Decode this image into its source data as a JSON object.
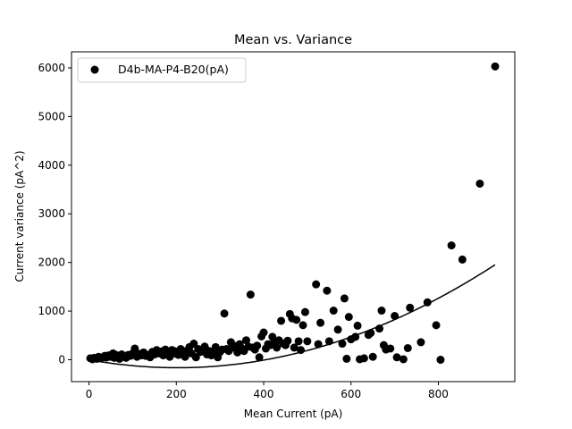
{
  "chart_data": {
    "type": "scatter",
    "title": "Mean vs. Variance",
    "xlabel": "Mean Current (pA)",
    "ylabel": "Current variance (pA^2)",
    "xlim": [
      -40,
      975
    ],
    "ylim": [
      -450,
      6330
    ],
    "xticks": [
      0,
      200,
      400,
      600,
      800
    ],
    "yticks": [
      0,
      1000,
      2000,
      3000,
      4000,
      5000,
      6000
    ],
    "grid": false,
    "legend_position": "top-left",
    "colors": {
      "points": "#000000",
      "fit": "#000000",
      "frame": "#000000"
    },
    "series": [
      {
        "name": "D4b-MA-P4-B20(pA)",
        "marker": "circle",
        "points": [
          [
            3,
            30
          ],
          [
            8,
            10
          ],
          [
            12,
            40
          ],
          [
            18,
            20
          ],
          [
            22,
            60
          ],
          [
            27,
            35
          ],
          [
            32,
            50
          ],
          [
            36,
            80
          ],
          [
            40,
            45
          ],
          [
            45,
            90
          ],
          [
            50,
            60
          ],
          [
            55,
            130
          ],
          [
            58,
            40
          ],
          [
            62,
            100
          ],
          [
            66,
            70
          ],
          [
            70,
            20
          ],
          [
            75,
            110
          ],
          [
            80,
            60
          ],
          [
            85,
            40
          ],
          [
            90,
            100
          ],
          [
            95,
            80
          ],
          [
            100,
            130
          ],
          [
            105,
            230
          ],
          [
            110,
            60
          ],
          [
            115,
            120
          ],
          [
            120,
            90
          ],
          [
            125,
            150
          ],
          [
            130,
            80
          ],
          [
            135,
            100
          ],
          [
            140,
            50
          ],
          [
            145,
            160
          ],
          [
            150,
            110
          ],
          [
            155,
            200
          ],
          [
            160,
            130
          ],
          [
            165,
            170
          ],
          [
            170,
            90
          ],
          [
            175,
            210
          ],
          [
            180,
            140
          ],
          [
            185,
            60
          ],
          [
            190,
            200
          ],
          [
            195,
            180
          ],
          [
            200,
            120
          ],
          [
            205,
            100
          ],
          [
            210,
            220
          ],
          [
            215,
            170
          ],
          [
            220,
            60
          ],
          [
            225,
            190
          ],
          [
            230,
            260
          ],
          [
            235,
            130
          ],
          [
            240,
            330
          ],
          [
            245,
            50
          ],
          [
            250,
            220
          ],
          [
            255,
            160
          ],
          [
            260,
            210
          ],
          [
            265,
            270
          ],
          [
            270,
            110
          ],
          [
            275,
            180
          ],
          [
            280,
            90
          ],
          [
            285,
            140
          ],
          [
            290,
            260
          ],
          [
            295,
            50
          ],
          [
            300,
            160
          ],
          [
            305,
            210
          ],
          [
            310,
            950
          ],
          [
            315,
            220
          ],
          [
            320,
            180
          ],
          [
            325,
            360
          ],
          [
            330,
            250
          ],
          [
            335,
            280
          ],
          [
            340,
            150
          ],
          [
            345,
            320
          ],
          [
            350,
            230
          ],
          [
            355,
            180
          ],
          [
            360,
            400
          ],
          [
            365,
            270
          ],
          [
            370,
            1340
          ],
          [
            375,
            250
          ],
          [
            380,
            210
          ],
          [
            385,
            290
          ],
          [
            390,
            50
          ],
          [
            395,
            480
          ],
          [
            400,
            560
          ],
          [
            405,
            230
          ],
          [
            410,
            320
          ],
          [
            415,
            300
          ],
          [
            420,
            470
          ],
          [
            425,
            380
          ],
          [
            430,
            250
          ],
          [
            435,
            400
          ],
          [
            440,
            800
          ],
          [
            445,
            330
          ],
          [
            450,
            300
          ],
          [
            455,
            390
          ],
          [
            460,
            940
          ],
          [
            465,
            850
          ],
          [
            470,
            250
          ],
          [
            475,
            820
          ],
          [
            480,
            380
          ],
          [
            485,
            200
          ],
          [
            490,
            710
          ],
          [
            495,
            980
          ],
          [
            500,
            380
          ],
          [
            520,
            1550
          ],
          [
            525,
            320
          ],
          [
            530,
            760
          ],
          [
            545,
            1420
          ],
          [
            550,
            380
          ],
          [
            560,
            1010
          ],
          [
            570,
            620
          ],
          [
            580,
            330
          ],
          [
            585,
            1260
          ],
          [
            590,
            20
          ],
          [
            595,
            880
          ],
          [
            600,
            420
          ],
          [
            610,
            470
          ],
          [
            615,
            700
          ],
          [
            620,
            10
          ],
          [
            630,
            30
          ],
          [
            640,
            510
          ],
          [
            645,
            550
          ],
          [
            650,
            60
          ],
          [
            665,
            640
          ],
          [
            670,
            1010
          ],
          [
            675,
            300
          ],
          [
            680,
            210
          ],
          [
            690,
            230
          ],
          [
            700,
            900
          ],
          [
            705,
            50
          ],
          [
            720,
            10
          ],
          [
            730,
            240
          ],
          [
            735,
            1070
          ],
          [
            760,
            360
          ],
          [
            775,
            1180
          ],
          [
            795,
            710
          ],
          [
            805,
            0
          ],
          [
            830,
            2350
          ],
          [
            855,
            2060
          ],
          [
            895,
            3620
          ],
          [
            930,
            6030
          ]
        ]
      }
    ],
    "fit_curve": {
      "type": "quadratic",
      "a": 0.004,
      "b": -1.62,
      "c": 0,
      "x_range": [
        0,
        930
      ]
    }
  }
}
